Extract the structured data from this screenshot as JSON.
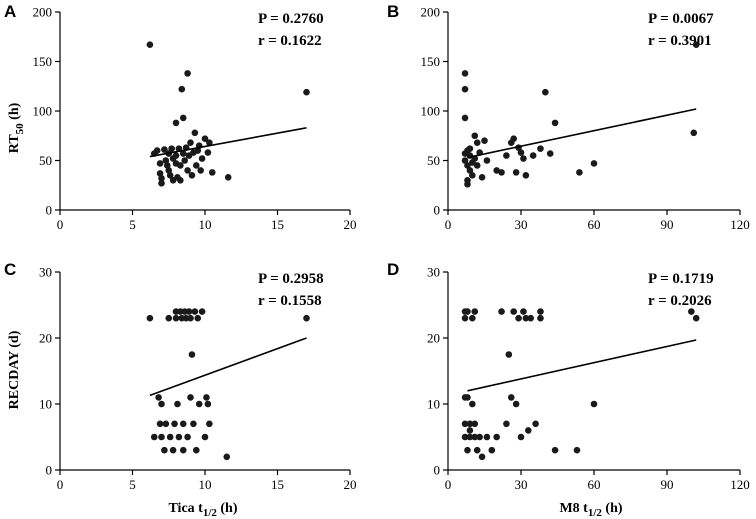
{
  "chart_data": [
    {
      "panel": "A",
      "type": "scatter",
      "ylabel_main": "RT",
      "ylabel_sub": "50",
      "ylabel_unit": " (h)",
      "xlabel_main": "",
      "xlabel_sub": "",
      "xlabel_unit": "",
      "xlim": [
        0,
        20
      ],
      "ylim": [
        0,
        200
      ],
      "xticks": [
        0,
        5,
        10,
        15,
        20
      ],
      "yticks": [
        0,
        50,
        100,
        150,
        200
      ],
      "xtick_labels": [
        "0",
        "5",
        "10",
        "15",
        "20"
      ],
      "ytick_labels": [
        "0",
        "50",
        "100",
        "150",
        "200"
      ],
      "p_text": "P = 0.2760",
      "r_text": "r = 0.1622",
      "fit": {
        "x1": 6.2,
        "y1": 54,
        "x2": 17.0,
        "y2": 83
      },
      "points": [
        [
          6.2,
          167
        ],
        [
          6.5,
          57
        ],
        [
          6.7,
          60
        ],
        [
          6.9,
          47
        ],
        [
          6.9,
          37
        ],
        [
          7.0,
          32
        ],
        [
          7.0,
          27
        ],
        [
          7.2,
          61
        ],
        [
          7.3,
          50
        ],
        [
          7.4,
          45
        ],
        [
          7.5,
          57
        ],
        [
          7.5,
          40
        ],
        [
          7.6,
          35
        ],
        [
          7.7,
          62
        ],
        [
          7.8,
          52
        ],
        [
          7.8,
          30
        ],
        [
          8.0,
          88
        ],
        [
          8.0,
          55
        ],
        [
          8.0,
          47
        ],
        [
          8.1,
          33
        ],
        [
          8.2,
          62
        ],
        [
          8.3,
          45
        ],
        [
          8.3,
          30
        ],
        [
          8.4,
          122
        ],
        [
          8.5,
          93
        ],
        [
          8.5,
          57
        ],
        [
          8.6,
          50
        ],
        [
          8.7,
          63
        ],
        [
          8.8,
          138
        ],
        [
          8.8,
          40
        ],
        [
          8.9,
          55
        ],
        [
          9.0,
          68
        ],
        [
          9.1,
          35
        ],
        [
          9.2,
          58
        ],
        [
          9.3,
          78
        ],
        [
          9.4,
          45
        ],
        [
          9.5,
          60
        ],
        [
          9.6,
          65
        ],
        [
          9.7,
          40
        ],
        [
          9.8,
          52
        ],
        [
          10.0,
          72
        ],
        [
          10.2,
          58
        ],
        [
          10.3,
          68
        ],
        [
          10.5,
          38
        ],
        [
          11.6,
          33
        ],
        [
          17.0,
          119
        ]
      ]
    },
    {
      "panel": "B",
      "type": "scatter",
      "ylabel_main": "",
      "ylabel_sub": "",
      "ylabel_unit": "",
      "xlabel_main": "",
      "xlabel_sub": "",
      "xlabel_unit": "",
      "xlim": [
        0,
        120
      ],
      "ylim": [
        0,
        200
      ],
      "xticks": [
        0,
        30,
        60,
        90,
        120
      ],
      "yticks": [
        0,
        50,
        100,
        150,
        200
      ],
      "xtick_labels": [
        "0",
        "30",
        "60",
        "90",
        "120"
      ],
      "ytick_labels": [
        "0",
        "50",
        "100",
        "150",
        "200"
      ],
      "p_text": "P = 0.0067",
      "r_text": "r = 0.3901",
      "fit": {
        "x1": 8,
        "y1": 53,
        "x2": 102,
        "y2": 102
      },
      "points": [
        [
          7,
          138
        ],
        [
          7,
          122
        ],
        [
          7,
          93
        ],
        [
          7,
          57
        ],
        [
          7,
          50
        ],
        [
          8,
          60
        ],
        [
          8,
          45
        ],
        [
          8,
          30
        ],
        [
          8,
          26
        ],
        [
          9,
          62
        ],
        [
          9,
          55
        ],
        [
          9,
          40
        ],
        [
          10,
          48
        ],
        [
          10,
          35
        ],
        [
          11,
          75
        ],
        [
          11,
          52
        ],
        [
          12,
          68
        ],
        [
          12,
          45
        ],
        [
          13,
          58
        ],
        [
          14,
          33
        ],
        [
          15,
          70
        ],
        [
          16,
          50
        ],
        [
          20,
          40
        ],
        [
          22,
          38
        ],
        [
          24,
          55
        ],
        [
          26,
          68
        ],
        [
          27,
          72
        ],
        [
          28,
          38
        ],
        [
          29,
          63
        ],
        [
          30,
          58
        ],
        [
          31,
          52
        ],
        [
          32,
          35
        ],
        [
          35,
          55
        ],
        [
          38,
          62
        ],
        [
          40,
          119
        ],
        [
          42,
          57
        ],
        [
          44,
          88
        ],
        [
          54,
          38
        ],
        [
          60,
          47
        ],
        [
          101,
          78
        ],
        [
          102,
          167
        ]
      ]
    },
    {
      "panel": "C",
      "type": "scatter",
      "ylabel_main": "RECDAY (d)",
      "ylabel_sub": "",
      "ylabel_unit": "",
      "xlabel_main": "Tica t",
      "xlabel_sub": "1/2",
      "xlabel_unit": " (h)",
      "xlim": [
        0,
        20
      ],
      "ylim": [
        0,
        30
      ],
      "xticks": [
        0,
        5,
        10,
        15,
        20
      ],
      "yticks": [
        0,
        10,
        20,
        30
      ],
      "xtick_labels": [
        "0",
        "5",
        "10",
        "15",
        "20"
      ],
      "ytick_labels": [
        "0",
        "10",
        "20",
        "30"
      ],
      "p_text": "P = 0.2958",
      "r_text": "r = 0.1558",
      "fit": {
        "x1": 6.2,
        "y1": 11.3,
        "x2": 17.0,
        "y2": 20.0
      },
      "points": [
        [
          6.2,
          23
        ],
        [
          6.5,
          5
        ],
        [
          6.8,
          11
        ],
        [
          6.9,
          7
        ],
        [
          7.0,
          10
        ],
        [
          7.0,
          5
        ],
        [
          7.2,
          3
        ],
        [
          7.3,
          7
        ],
        [
          7.5,
          23
        ],
        [
          7.6,
          5
        ],
        [
          7.8,
          3
        ],
        [
          7.9,
          7
        ],
        [
          8.0,
          24
        ],
        [
          8.0,
          23
        ],
        [
          8.1,
          10
        ],
        [
          8.2,
          5
        ],
        [
          8.3,
          24
        ],
        [
          8.4,
          23
        ],
        [
          8.5,
          7
        ],
        [
          8.5,
          3
        ],
        [
          8.6,
          24
        ],
        [
          8.7,
          23
        ],
        [
          8.8,
          5
        ],
        [
          8.9,
          24
        ],
        [
          9.0,
          23
        ],
        [
          9.0,
          11
        ],
        [
          9.1,
          17.5
        ],
        [
          9.2,
          7
        ],
        [
          9.3,
          24
        ],
        [
          9.4,
          3
        ],
        [
          9.5,
          23
        ],
        [
          9.6,
          10
        ],
        [
          9.8,
          24
        ],
        [
          10.0,
          5
        ],
        [
          10.1,
          11
        ],
        [
          10.2,
          10
        ],
        [
          10.3,
          7
        ],
        [
          11.5,
          2
        ],
        [
          17.0,
          23
        ]
      ]
    },
    {
      "panel": "D",
      "type": "scatter",
      "ylabel_main": "",
      "ylabel_sub": "",
      "ylabel_unit": "",
      "xlabel_main": "M8 t",
      "xlabel_sub": "1/2",
      "xlabel_unit": " (h)",
      "xlim": [
        0,
        120
      ],
      "ylim": [
        0,
        30
      ],
      "xticks": [
        0,
        30,
        60,
        90,
        120
      ],
      "yticks": [
        0,
        10,
        20,
        30
      ],
      "xtick_labels": [
        "0",
        "30",
        "60",
        "90",
        "120"
      ],
      "ytick_labels": [
        "0",
        "10",
        "20",
        "30"
      ],
      "p_text": "P = 0.1719",
      "r_text": "r = 0.2026",
      "fit": {
        "x1": 8,
        "y1": 12.0,
        "x2": 102,
        "y2": 19.7
      },
      "points": [
        [
          7,
          24
        ],
        [
          7,
          23
        ],
        [
          7,
          11
        ],
        [
          7,
          7
        ],
        [
          7,
          5
        ],
        [
          8,
          3
        ],
        [
          8,
          24
        ],
        [
          8,
          11
        ],
        [
          9,
          6
        ],
        [
          9,
          7
        ],
        [
          9,
          5
        ],
        [
          10,
          23
        ],
        [
          10,
          10
        ],
        [
          11,
          24
        ],
        [
          11,
          7
        ],
        [
          11,
          5
        ],
        [
          12,
          3
        ],
        [
          13,
          5
        ],
        [
          14,
          2
        ],
        [
          16,
          5
        ],
        [
          18,
          3
        ],
        [
          20,
          5
        ],
        [
          22,
          24
        ],
        [
          24,
          7
        ],
        [
          25,
          17.5
        ],
        [
          26,
          11
        ],
        [
          27,
          24
        ],
        [
          28,
          10
        ],
        [
          29,
          23
        ],
        [
          30,
          5
        ],
        [
          31,
          24
        ],
        [
          32,
          23
        ],
        [
          33,
          6
        ],
        [
          34,
          23
        ],
        [
          36,
          7
        ],
        [
          38,
          24
        ],
        [
          38,
          23
        ],
        [
          44,
          3
        ],
        [
          53,
          3
        ],
        [
          60,
          10
        ],
        [
          100,
          24
        ],
        [
          102,
          23
        ]
      ]
    }
  ]
}
